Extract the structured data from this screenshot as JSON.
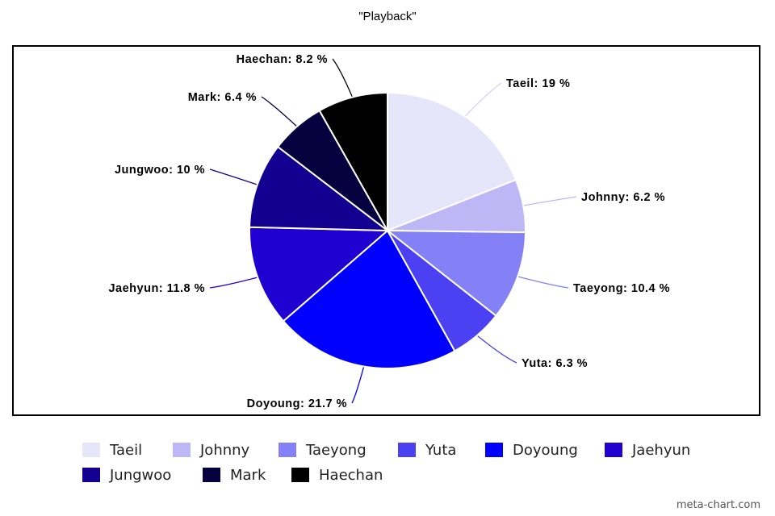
{
  "chart_data": {
    "type": "pie",
    "title": "\"Playback\"",
    "legend_position": "bottom",
    "slices": [
      {
        "name": "Taeil",
        "value": 19,
        "label": "Taeil: 19 %",
        "color": "#e6e6fa"
      },
      {
        "name": "Johnny",
        "value": 6.2,
        "label": "Johnny: 6.2 %",
        "color": "#bdb8f5"
      },
      {
        "name": "Taeyong",
        "value": 10.4,
        "label": "Taeyong: 10.4 %",
        "color": "#8480f5"
      },
      {
        "name": "Yuta",
        "value": 6.3,
        "label": "Yuta: 6.3 %",
        "color": "#4b41f2"
      },
      {
        "name": "Doyoung",
        "value": 21.7,
        "label": "Doyoung: 21.7 %",
        "color": "#0000ff"
      },
      {
        "name": "Jaehyun",
        "value": 11.8,
        "label": "Jaehyun: 11.8 %",
        "color": "#2000d0"
      },
      {
        "name": "Jungwoo",
        "value": 10,
        "label": "Jungwoo: 10 %",
        "color": "#140090"
      },
      {
        "name": "Mark",
        "value": 6.4,
        "label": "Mark: 6.4 %",
        "color": "#05003e"
      },
      {
        "name": "Haechan",
        "value": 8.2,
        "label": "Haechan: 8.2 %",
        "color": "#000000"
      }
    ]
  },
  "watermark": "meta-chart.com"
}
